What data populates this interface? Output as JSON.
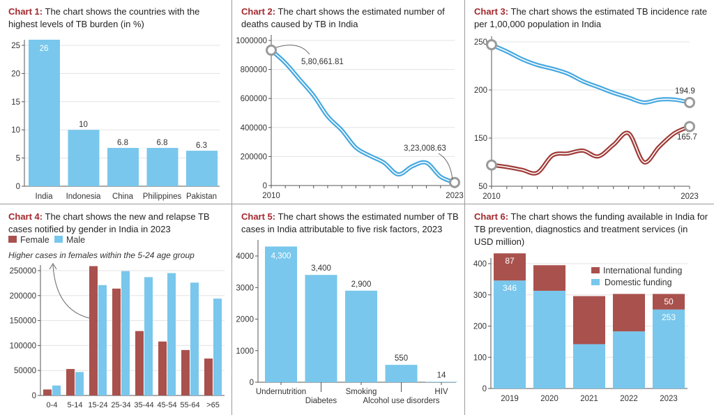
{
  "colors": {
    "blue": "#79c7ec",
    "line_blue": "#45a7e0",
    "red": "#a9514d",
    "line_red": "#9e3a36",
    "title_red": "#a3282d",
    "grid": "#e3e3e3",
    "marker": "#9a9a9a"
  },
  "chart_data": [
    {
      "id": "chart1",
      "type": "bar",
      "title_prefix": "Chart 1:",
      "title": "The chart shows the countries with the highest levels of TB burden (in %)",
      "categories": [
        "India",
        "Indonesia",
        "China",
        "Philippines",
        "Pakistan"
      ],
      "values": [
        26,
        10,
        6.8,
        6.8,
        6.3
      ],
      "data_labels": [
        "26",
        "10",
        "6.8",
        "6.8",
        "6.3"
      ],
      "yticks": [
        0,
        5,
        10,
        15,
        20,
        25
      ],
      "ylim": [
        0,
        26
      ],
      "grid": true
    },
    {
      "id": "chart2",
      "type": "line",
      "title_prefix": "Chart 2:",
      "title": "The chart shows the estimated number of deaths caused by TB in India",
      "x": [
        2010,
        2011,
        2012,
        2013,
        2014,
        2015,
        2016,
        2017,
        2018,
        2019,
        2020,
        2021,
        2022,
        2023
      ],
      "values": [
        933000,
        845000,
        733000,
        620000,
        477000,
        381000,
        261000,
        205000,
        157000,
        77000,
        133000,
        157000,
        61000,
        21000
      ],
      "xtick_labels": [
        "2010",
        "2023"
      ],
      "yticks": [
        0,
        200000,
        400000,
        600000,
        800000,
        1000000
      ],
      "ylim": [
        0,
        1000000
      ],
      "grid": true,
      "annotations": [
        "5,80,661.81",
        "3,23,008.63"
      ]
    },
    {
      "id": "chart3",
      "type": "line",
      "title_prefix": "Chart 3:",
      "title": "The chart shows the estimated TB incidence rate per 1,00,000 population in India",
      "x": [
        2010,
        2011,
        2012,
        2013,
        2014,
        2015,
        2016,
        2017,
        2018,
        2019,
        2020,
        2021,
        2022,
        2023
      ],
      "series": [
        {
          "color": "blue",
          "values": [
            247,
            240,
            232,
            226,
            222,
            217,
            209,
            203,
            197,
            192,
            187,
            190,
            190,
            187
          ]
        },
        {
          "color": "red",
          "values": [
            122,
            120,
            117,
            114,
            132,
            134,
            137,
            131,
            143,
            155,
            125,
            141,
            155,
            162
          ]
        }
      ],
      "xtick_labels": [
        "2010",
        "2023"
      ],
      "ytick_labels": [
        "50",
        "150",
        "200",
        "250"
      ],
      "ylim": [
        100,
        250
      ],
      "grid": true,
      "annotations": [
        "194.9",
        "165.7"
      ]
    },
    {
      "id": "chart4",
      "type": "bar",
      "title_prefix": "Chart 4:",
      "title": "The chart shows the new and relapse TB cases notified by gender in India in 2023",
      "categories": [
        "0-4",
        "5-14",
        "15-24",
        "25-34",
        "35-44",
        "45-54",
        "55-64",
        ">65"
      ],
      "series": [
        {
          "name": "Female",
          "color": "red",
          "values": [
            12000,
            53000,
            259000,
            214000,
            129000,
            108000,
            91000,
            74000
          ]
        },
        {
          "name": "Male",
          "color": "blue",
          "values": [
            20000,
            47000,
            221000,
            249000,
            237000,
            245000,
            226000,
            194000
          ]
        }
      ],
      "yticks": [
        0,
        50000,
        100000,
        150000,
        200000,
        250000
      ],
      "ylim": [
        0,
        260000
      ],
      "grid": true,
      "legend": "top-left",
      "annotation": "Higher cases in females within the 5-24 age group"
    },
    {
      "id": "chart5",
      "type": "bar",
      "title_prefix": "Chart 5:",
      "title": "The chart shows the estimated number of TB cases in India attributable to five risk factors, 2023",
      "categories": [
        "Undernutrition",
        "Diabetes",
        "Smoking",
        "Alcohol use disorders",
        "HIV"
      ],
      "values": [
        4300,
        3400,
        2900,
        550,
        14
      ],
      "data_labels": [
        "4,300",
        "3,400",
        "2,900",
        "550",
        "14"
      ],
      "yticks": [
        0,
        1000,
        2000,
        3000,
        4000
      ],
      "ylim": [
        0,
        4300
      ],
      "grid": false
    },
    {
      "id": "chart6",
      "type": "bar",
      "stacked": true,
      "title_prefix": "Chart 6:",
      "title": "The chart shows the funding available in India for TB prevention, diagnostics and treatment services (in USD million)",
      "categories": [
        "2019",
        "2020",
        "2021",
        "2022",
        "2023"
      ],
      "series": [
        {
          "name": "Domestic funding",
          "color": "blue",
          "values": [
            346,
            313,
            142,
            183,
            253
          ],
          "data_labels": [
            "346",
            "",
            "",
            "",
            "253"
          ]
        },
        {
          "name": "International funding",
          "color": "red",
          "values": [
            87,
            82,
            154,
            120,
            50
          ],
          "data_labels": [
            "87",
            "",
            "",
            "",
            "50"
          ]
        }
      ],
      "yticks": [
        0,
        100,
        200,
        300,
        400
      ],
      "ylim": [
        0,
        440
      ],
      "grid": true,
      "legend": "top-right"
    }
  ]
}
